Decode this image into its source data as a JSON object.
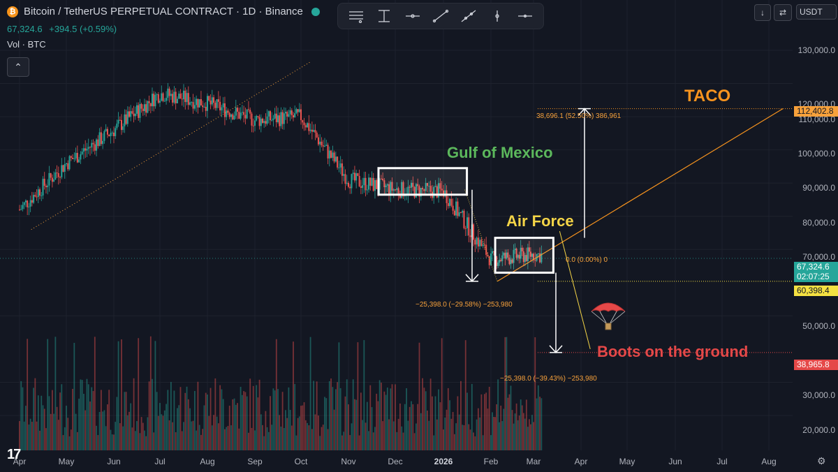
{
  "header": {
    "symbol_title": "Bitcoin / TetherUS PERPETUAL CONTRACT · 1D · Binance",
    "symbol_icon": "bitcoin-icon",
    "last_price": "67,324.6",
    "change": "+394.5 (+0.59%)",
    "volume_label": "Vol · BTC",
    "collapse_icon": "chevron-up-icon"
  },
  "toolbar": {
    "tools": [
      "horizontal-lines-icon",
      "vertical-anchor-icon",
      "horizontal-ray-icon",
      "trend-line-icon",
      "extended-line-icon",
      "vertical-line-icon",
      "horizontal-line-icon"
    ]
  },
  "top_right": {
    "download_icon": "arrow-down-icon",
    "swap_icon": "swap-icon",
    "currency": "USDT"
  },
  "price_axis": {
    "labels": [
      "130,000.0",
      "120,000.0",
      "110,000.0",
      "100,000.0",
      "90,000.0",
      "80,000.0",
      "70,000.0",
      "50,000.0",
      "30,000.0",
      "20,000.0"
    ],
    "tags": {
      "target_price": "112,402.8",
      "current_price": "67,324.6",
      "countdown": "02:07:25",
      "support_price": "60,398.4",
      "low_price": "38,965.8"
    }
  },
  "time_axis": {
    "labels": [
      "Apr",
      "May",
      "Jun",
      "Jul",
      "Aug",
      "Sep",
      "Oct",
      "Nov",
      "Dec",
      "2026",
      "Feb",
      "Mar",
      "Apr",
      "May",
      "Jun",
      "Jul",
      "Aug"
    ]
  },
  "annotations": {
    "taco": "TACO",
    "gulf": "Gulf of Mexico",
    "air_force": "Air Force",
    "boots": "Boots on the ground",
    "measure_up": "38,696.1 (52.50%) 386,961",
    "measure_mid": "0.0 (0.00%) 0",
    "measure_down1": "−25,398.0 (−29.58%) −253,980",
    "measure_down2": "−25,398.0 (−39.43%) −253,980",
    "parachute_icon": "parachute-icon"
  },
  "colors": {
    "background": "#131722",
    "up": "#26a69a",
    "down": "#ef5350",
    "taco": "#f7931e",
    "gulf": "#5cb85c",
    "air_force": "#f5d547",
    "boots": "#e54848",
    "target_tag": "#f7a13b",
    "support_tag": "#f5e142",
    "low_tag": "#e54848"
  },
  "chart_data": {
    "type": "candlestick",
    "title": "Bitcoin / TetherUS PERPETUAL CONTRACT · 1D · Binance",
    "xlabel": "",
    "ylabel": "",
    "ylim": [
      15000,
      135000
    ],
    "grid": true,
    "price_scale_labels": [
      130000,
      120000,
      110000,
      100000,
      90000,
      80000,
      70000,
      50000,
      30000,
      20000
    ],
    "last_price": 67324.6,
    "horizontal_levels": [
      112402.8,
      60398.4,
      38965.8
    ],
    "path_monthly_closes": {
      "x": [
        "Apr",
        "May",
        "Jun",
        "Jul",
        "Aug",
        "Sep",
        "Oct",
        "Nov",
        "Dec",
        "2026",
        "Feb",
        "Mar",
        "Apr"
      ],
      "y": [
        82000,
        96000,
        106000,
        117000,
        114000,
        109000,
        110000,
        91000,
        88000,
        87500,
        67000,
        68500,
        67324.6
      ]
    },
    "ranges": [
      {
        "label": "Gulf of Mexico",
        "x_start": "Dec",
        "x_end": "Jan",
        "y_low": 86500,
        "y_high": 94500
      },
      {
        "label": "Air Force",
        "x_start": "Feb",
        "x_end": "Mar",
        "y_low": 63000,
        "y_high": 73500
      }
    ],
    "measurements": [
      {
        "text": "38,696.1 (52.50%) 386,961",
        "direction": "up"
      },
      {
        "text": "−25,398.0 (−29.58%) −253,980",
        "direction": "down"
      },
      {
        "text": "−25,398.0 (−39.43%) −253,980",
        "direction": "down"
      },
      {
        "text": "0.0 (0.00%) 0",
        "direction": "flat"
      }
    ]
  }
}
